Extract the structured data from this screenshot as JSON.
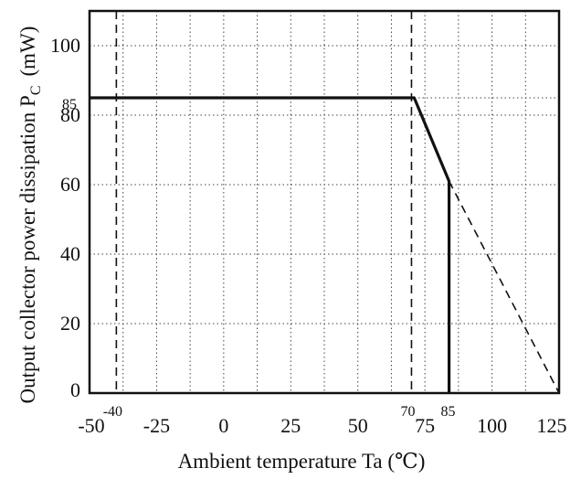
{
  "chart_data": {
    "type": "line",
    "title": "",
    "xlabel": "Ambient temperature Ta (℃)",
    "ylabel": "Output collector power dissipation P",
    "ylabel_subscript": "C",
    "ylabel_unit": "(mW)",
    "xlim": [
      -50,
      125
    ],
    "ylim": [
      0,
      110
    ],
    "grid": true,
    "x_ticks": [
      "-50",
      "-25",
      "0",
      "25",
      "50",
      "75",
      "100",
      "125"
    ],
    "x_tick_values": [
      -50,
      -25,
      0,
      25,
      50,
      75,
      100,
      125
    ],
    "x_special_ticks": [
      "-40",
      "70",
      "85"
    ],
    "x_special_values": [
      -40,
      70,
      85
    ],
    "y_ticks": [
      "0",
      "20",
      "40",
      "60",
      "80",
      "100"
    ],
    "y_tick_values": [
      0,
      20,
      40,
      60,
      80,
      100
    ],
    "y_special_ticks": [
      "85"
    ],
    "y_special_values": [
      85
    ],
    "series": [
      {
        "style": "solid",
        "x": [
          -50,
          71,
          84,
          84
        ],
        "y": [
          85,
          85,
          61,
          0
        ]
      },
      {
        "style": "dashed",
        "x": [
          84,
          125
        ],
        "y": [
          61,
          0
        ]
      }
    ],
    "reference_lines": [
      {
        "style": "dashed",
        "axis": "x",
        "value": -40
      },
      {
        "style": "dashed",
        "axis": "x",
        "value": 70
      }
    ]
  }
}
